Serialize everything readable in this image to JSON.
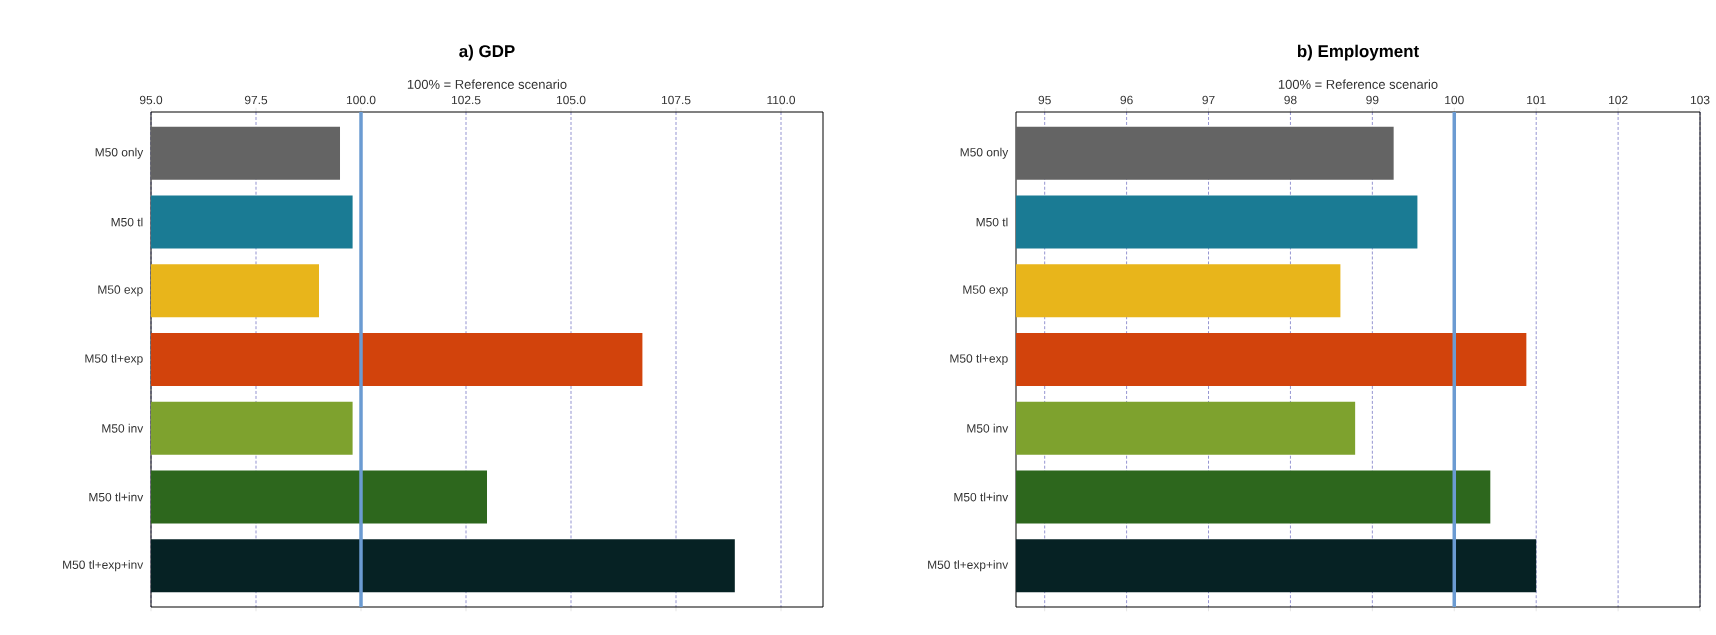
{
  "chart_data": [
    {
      "type": "bar",
      "orientation": "horizontal",
      "title": "a) GDP",
      "xlabel": "100% = Reference scenario",
      "categories": [
        "M50 only",
        "M50 tl",
        "M50 exp",
        "M50 tl+exp",
        "M50 inv",
        "M50 tl+inv",
        "M50 tl+exp+inv"
      ],
      "values": [
        99.5,
        99.8,
        99.0,
        106.7,
        99.8,
        103.0,
        108.9
      ],
      "colors": [
        "#646464",
        "#1a7b94",
        "#e8b51b",
        "#d2430c",
        "#7ea22e",
        "#2d671d",
        "#062224"
      ],
      "xlim": [
        95,
        111
      ],
      "xticks": [
        {
          "value": 95,
          "label": "95.0"
        },
        {
          "value": 97.5,
          "label": "97.5"
        },
        {
          "value": 100,
          "label": "100.0"
        },
        {
          "value": 102.5,
          "label": "102.5"
        },
        {
          "value": 105,
          "label": "105.0"
        },
        {
          "value": 107.5,
          "label": "107.5"
        },
        {
          "value": 110,
          "label": "110.0"
        }
      ],
      "grid": "x",
      "ref_lines": [
        {
          "axis": "x",
          "value": 100,
          "color": "#6b9bd2"
        }
      ]
    },
    {
      "type": "bar",
      "orientation": "horizontal",
      "title": "b) Employment",
      "xlabel": "100% = Reference scenario",
      "categories": [
        "M50 only",
        "M50 tl",
        "M50 exp",
        "M50 tl+exp",
        "M50 inv",
        "M50 tl+inv",
        "M50 tl+exp+inv"
      ],
      "values": [
        99.26,
        99.55,
        98.61,
        100.88,
        98.79,
        100.44,
        101.0
      ],
      "colors": [
        "#646464",
        "#1a7b94",
        "#e8b51b",
        "#d2430c",
        "#7ea22e",
        "#2d671d",
        "#062224"
      ],
      "xlim": [
        94.65,
        103
      ],
      "xticks": [
        95,
        96,
        97,
        98,
        99,
        100,
        101,
        102,
        103
      ],
      "grid": "x",
      "ref_lines": [
        {
          "axis": "x",
          "value": 100,
          "color": "#6b9bd2"
        }
      ]
    }
  ]
}
